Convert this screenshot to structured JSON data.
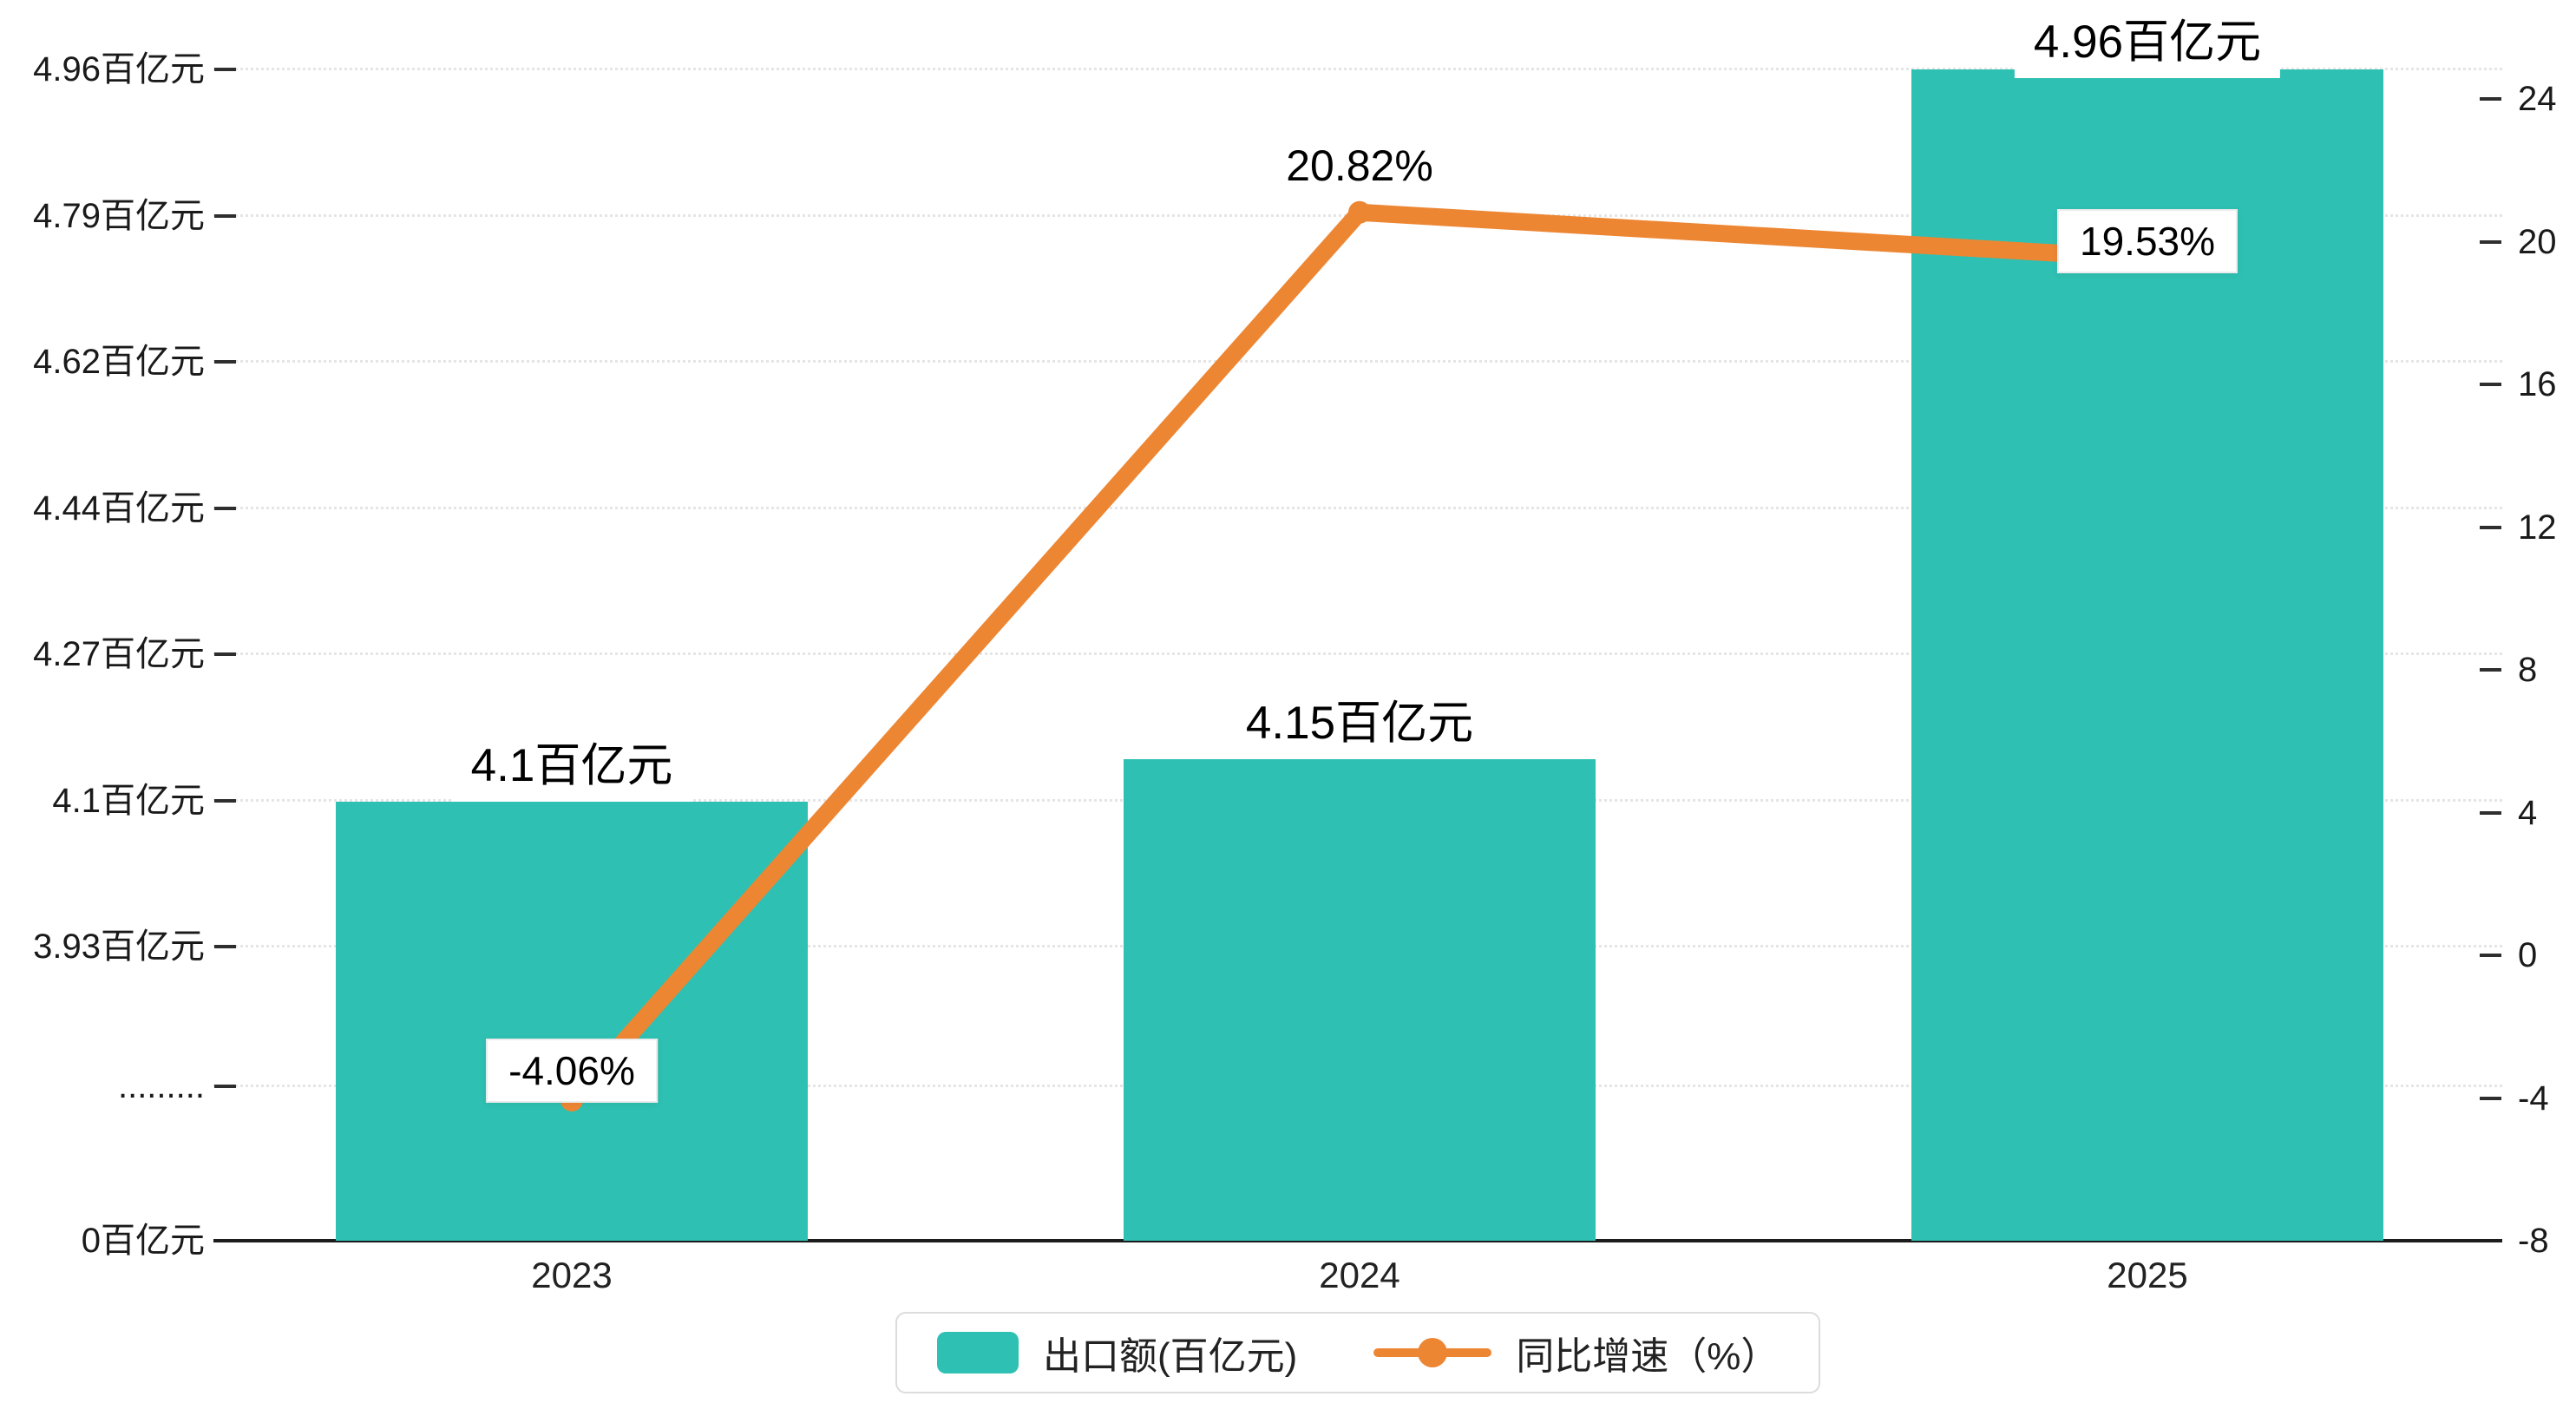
{
  "legend": {
    "items": [
      {
        "label": "出口额(百亿元)",
        "type": "bar"
      },
      {
        "label": "同比增速（%）",
        "type": "line"
      }
    ]
  },
  "chart_data": {
    "type": "bar+line",
    "title": "",
    "categories": [
      "2023",
      "2024",
      "2025"
    ],
    "series": [
      {
        "name": "出口额(百亿元)",
        "type": "bar",
        "axis": "left",
        "color": "#2ec0b2",
        "values": [
          4.1,
          4.15,
          4.96
        ],
        "data_labels": [
          "4.1百亿元",
          "4.15百亿元",
          "4.96百亿元"
        ]
      },
      {
        "name": "同比增速（%）",
        "type": "line",
        "axis": "right",
        "color": "#ed8633",
        "values": [
          -4.06,
          20.82,
          19.53
        ],
        "data_labels": [
          "-4.06%",
          "20.82%",
          "19.53%"
        ]
      }
    ],
    "left_axis": {
      "unit": "百亿元",
      "broken_axis": true,
      "tick_labels_top_to_bottom": [
        "4.96百亿元",
        "4.79百亿元",
        "4.62百亿元",
        "4.44百亿元",
        "4.27百亿元",
        "4.1百亿元",
        "3.93百亿元",
        ".........",
        "0百亿元"
      ],
      "tick_values_top_to_bottom": [
        4.96,
        4.79,
        4.62,
        4.44,
        4.27,
        4.1,
        3.93,
        null,
        0
      ]
    },
    "right_axis": {
      "unit": "%",
      "range": [
        -8,
        24
      ],
      "tick_labels_top_to_bottom": [
        "24",
        "20",
        "16",
        "12",
        "8",
        "4",
        "0",
        "-4",
        "-8"
      ],
      "tick_values_top_to_bottom": [
        24,
        20,
        16,
        12,
        8,
        4,
        0,
        -4,
        -8
      ]
    },
    "grid": "dotted horizontal lines on, legend bottom center"
  }
}
